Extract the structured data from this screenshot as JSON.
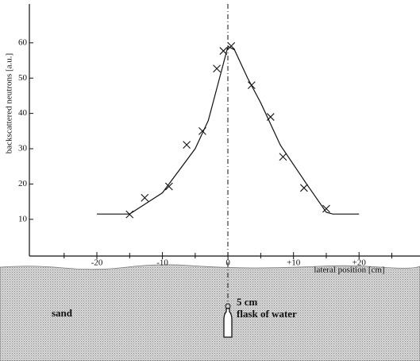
{
  "chart_data": {
    "type": "scatter",
    "y_label": "backscattered neutrons [a.u.]",
    "x_label": "lateral position [cm]",
    "points": {
      "x": [
        -15,
        -12.7,
        -9,
        -6.3,
        -3.9,
        -1.7,
        -0.7,
        0.5,
        3.6,
        6.5,
        8.4,
        11.6,
        15
      ],
      "y": [
        11.4,
        16.1,
        19.3,
        31.1,
        35,
        52.7,
        57.7,
        59.1,
        48,
        39,
        27.7,
        18.9,
        13
      ]
    },
    "curve": {
      "x": [
        -20,
        -15,
        -10,
        -5,
        -3,
        -1,
        0,
        1,
        3,
        5,
        8,
        12,
        15,
        16,
        20
      ],
      "y": [
        11.5,
        11.5,
        17.5,
        30,
        38,
        52,
        59,
        58,
        50,
        43,
        31,
        20,
        12,
        11.5,
        11.5
      ]
    },
    "color": "#111111",
    "xlim": [
      -30.3,
      29.3
    ],
    "ylim": [
      -0.4,
      71
    ],
    "xticks": [
      -20,
      -10,
      0,
      {
        "value": 10,
        "label": "+10"
      },
      {
        "value": 20,
        "label": "+20"
      }
    ],
    "xminorticks": [
      -25,
      -15,
      -5,
      5,
      15,
      25
    ],
    "yticks": [
      10,
      20,
      30,
      40,
      50,
      60
    ],
    "annotations": [
      "sand",
      "5 cm",
      "flask of water"
    ]
  }
}
